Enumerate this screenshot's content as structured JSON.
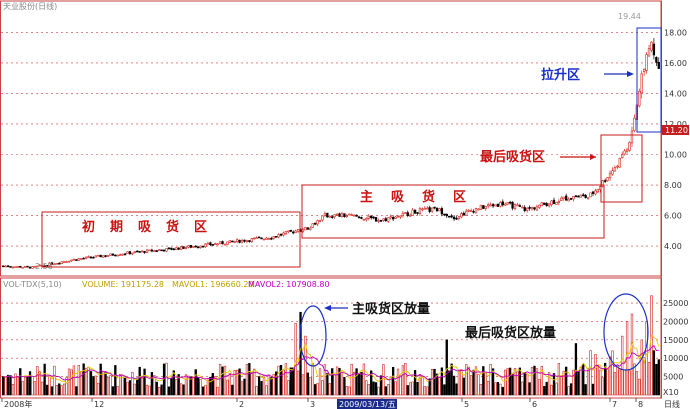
{
  "header": {
    "stock_title": "天业股份(日线)",
    "date_label": "2009/03/13/五",
    "x_axis_label": "日线"
  },
  "price_panel": {
    "high_marker": "19.44",
    "low_marker": "2.58",
    "current_price": "11.20",
    "y_ticks": [
      "18.00",
      "16.00",
      "14.00",
      "12.00",
      "10.00",
      "8.00",
      "6.00",
      "4.00"
    ]
  },
  "volume_panel": {
    "indicator_name": "VOL-TDX(5,10)",
    "volume_text": "VOLUME: 191175.28",
    "mavol1_text": "MAVOL1: 196660.20",
    "mavol2_text": "MAVOL2: 107908.80",
    "y_ticks": [
      "25000",
      "20000",
      "15000",
      "10000",
      "5000"
    ],
    "unit_label": "X10"
  },
  "x_axis": {
    "labels": [
      "2008年",
      "12",
      "2",
      "3",
      "4",
      "5",
      "6",
      "7",
      "8"
    ]
  },
  "annotations": {
    "initial_accumulation": "初期吸货区",
    "main_accumulation": "主吸货区",
    "final_accumulation": "最后吸货区",
    "pull_up": "拉升区",
    "main_volume": "主吸货区放量",
    "final_volume": "最后吸货区放量"
  },
  "colors": {
    "up": "#d6231c",
    "down": "#000000",
    "ma1": "#e8c600",
    "ma2": "#c000c0",
    "annotation_box": "#c41e1e",
    "annotation_text": "#cc1111",
    "circle": "#1a2fc8",
    "grid": "#c84040"
  },
  "chart_data": {
    "type": "candlestick",
    "price_range": [
      2.3,
      19.6
    ],
    "volume_range": [
      0,
      28000
    ],
    "price_ticks": [
      4,
      6,
      8,
      10,
      12,
      14,
      16,
      18
    ],
    "volume_ticks": [
      5000,
      10000,
      15000,
      20000,
      25000
    ],
    "price_path": [
      [
        0,
        2.7
      ],
      [
        12,
        2.6
      ],
      [
        28,
        3.1
      ],
      [
        48,
        3.5
      ],
      [
        68,
        3.8
      ],
      [
        90,
        4.2
      ],
      [
        110,
        4.6
      ],
      [
        125,
        5.2
      ],
      [
        132,
        6.0
      ],
      [
        142,
        6.0
      ],
      [
        155,
        5.7
      ],
      [
        170,
        6.3
      ],
      [
        178,
        6.4
      ],
      [
        185,
        5.9
      ],
      [
        195,
        6.5
      ],
      [
        205,
        6.8
      ],
      [
        215,
        6.4
      ],
      [
        225,
        6.9
      ],
      [
        235,
        7.3
      ],
      [
        240,
        7.2
      ],
      [
        244,
        7.8
      ],
      [
        250,
        9.0
      ],
      [
        255,
        10.0
      ],
      [
        258,
        11.5
      ],
      [
        262,
        15.0
      ],
      [
        266,
        17.5
      ],
      [
        268,
        16.0
      ]
    ],
    "volume_spikes": [
      [
        120,
        19500
      ],
      [
        122,
        22500
      ],
      [
        124,
        16000
      ],
      [
        182,
        15000
      ],
      [
        235,
        14000
      ],
      [
        250,
        12000
      ],
      [
        254,
        16000
      ],
      [
        256,
        20000
      ],
      [
        258,
        22000
      ],
      [
        262,
        15000
      ],
      [
        264,
        20000
      ],
      [
        266,
        27000
      ]
    ],
    "volume_baseline": 6000,
    "regions": [
      {
        "label": "初期吸货区",
        "from": 10,
        "to": 114,
        "price_low": 3.3,
        "price_high": 6.9
      },
      {
        "label": "主吸货区",
        "from": 114,
        "to": 236,
        "price_low": 4.5,
        "price_high": 8.3
      },
      {
        "label": "最后吸货区",
        "from": 236,
        "to": 260,
        "price_low": 7.0,
        "price_high": 10.3
      },
      {
        "label": "拉升区",
        "from": 254,
        "to": 268,
        "price_low": 11.2,
        "price_high": 18.2
      }
    ]
  }
}
